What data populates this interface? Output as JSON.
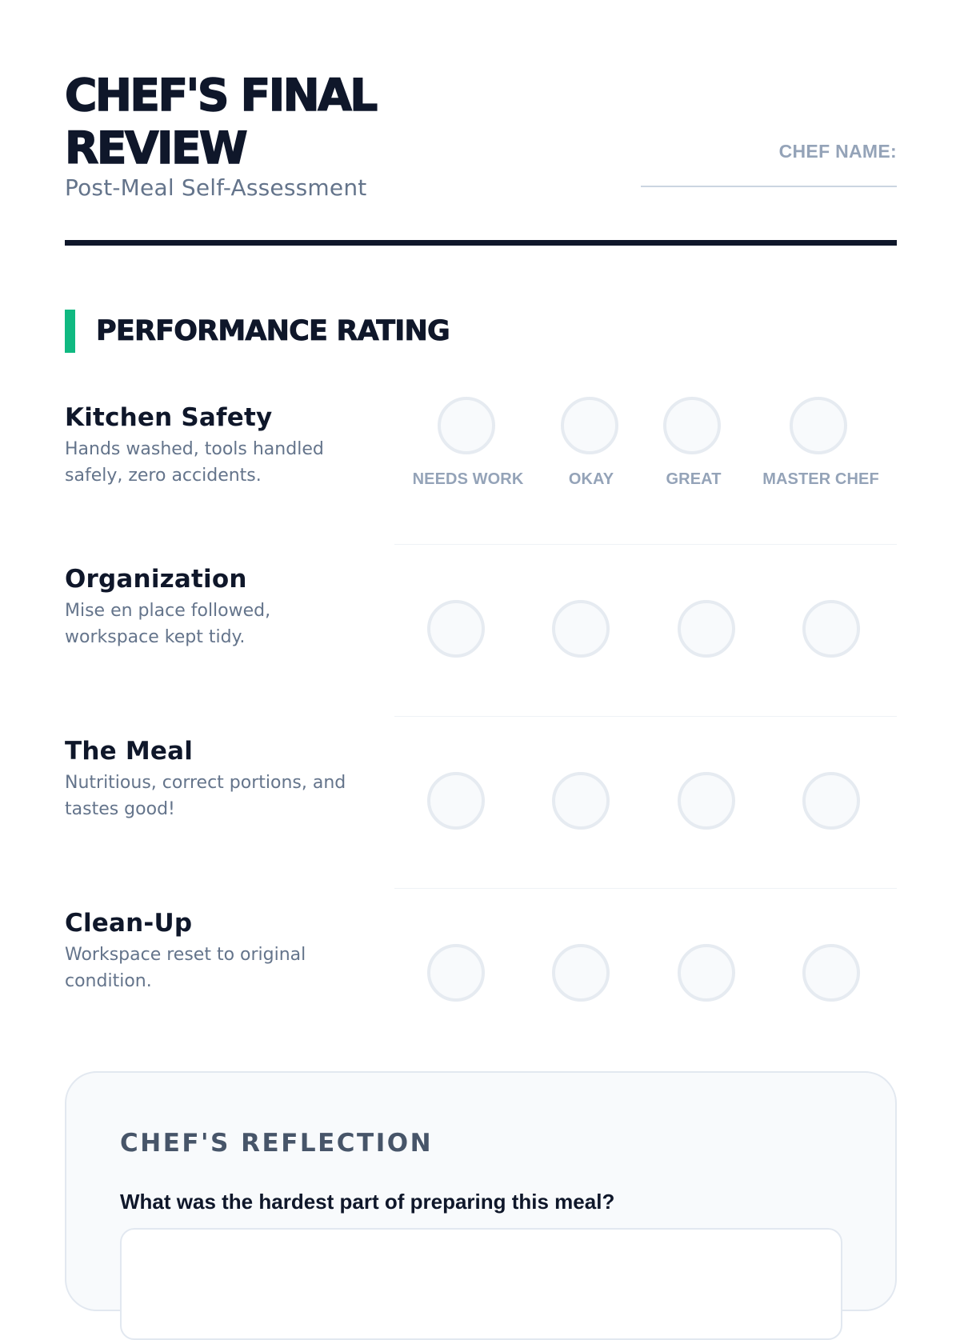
{
  "header": {
    "title_line1": "CHEF'S FINAL",
    "title_line2": "REVIEW",
    "subtitle": "Post-Meal Self-Assessment",
    "chef_name_label": "CHEF NAME:",
    "chef_name_value": ""
  },
  "rating_section": {
    "title": "PERFORMANCE RATING",
    "accent_color": "#10b981",
    "scale_labels": [
      "NEEDS WORK",
      "OKAY",
      "GREAT",
      "MASTER CHEF"
    ],
    "criteria": [
      {
        "name": "Kitchen Safety",
        "description": "Hands washed, tools handled safely, zero accidents.",
        "selected": null
      },
      {
        "name": "Organization",
        "description": "Mise en place followed, workspace kept tidy.",
        "selected": null
      },
      {
        "name": "The Meal",
        "description": "Nutritious, correct portions, and tastes good!",
        "selected": null
      },
      {
        "name": "Clean-Up",
        "description": "Workspace reset to original condition.",
        "selected": null
      }
    ]
  },
  "reflection": {
    "title": "CHEF'S REFLECTION",
    "question": "What was the hardest part of preparing this meal?",
    "answer": ""
  }
}
